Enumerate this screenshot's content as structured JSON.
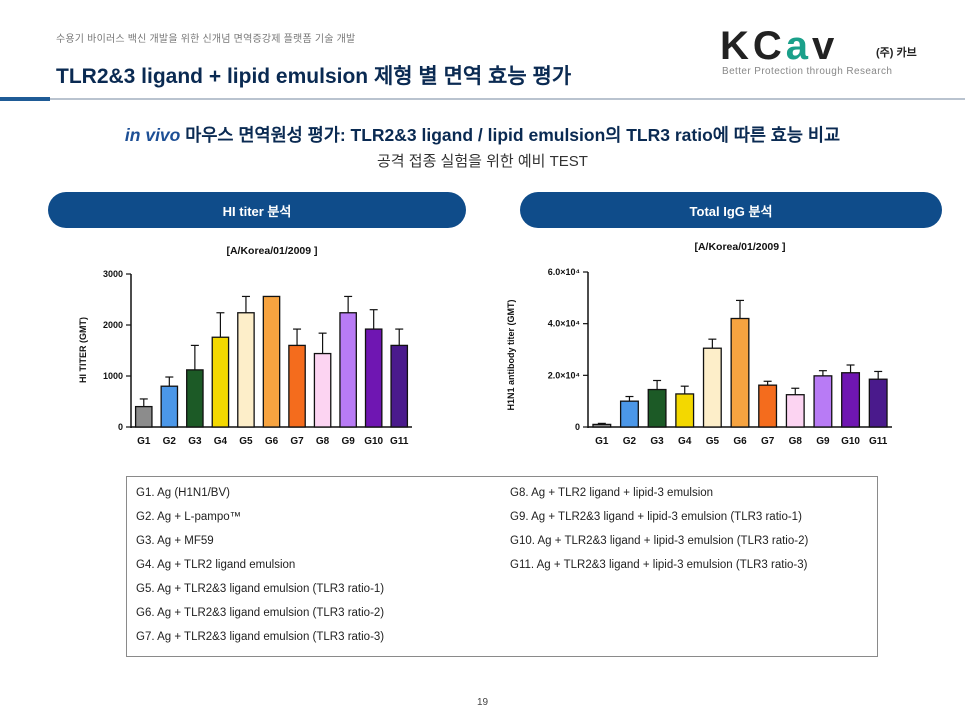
{
  "header": {
    "caption": "수용기 바이러스 백신 개발을 위한 신개념 면역증강제 플랫폼 기술 개발",
    "title": "TLR2&3 ligand + lipid emulsion 제형 별 면역 효능 평가"
  },
  "logo": {
    "word_k": "KC",
    "word_a": "a",
    "word_v": "v",
    "company": "(주) 카브",
    "tagline": "Better Protection through Research"
  },
  "headline": {
    "italic": "in vivo",
    "text": " 마우스 면역원성 평가: TLR2&3 ligand / lipid emulsion의 TLR3 ratio에 따른 효능 비교",
    "sub": "공격 접종 실험을 위한 예비 TEST"
  },
  "panels": {
    "hi_label": "HI titer 분석",
    "igg_label": "Total IgG 분석"
  },
  "chart_data": [
    {
      "type": "bar",
      "title": "[A/Korea/01/2009 ]",
      "xlabel": "",
      "ylabel": "HI TITER (GMT)",
      "categories": [
        "G1",
        "G2",
        "G3",
        "G4",
        "G5",
        "G6",
        "G7",
        "G8",
        "G9",
        "G10",
        "G11"
      ],
      "values": [
        400,
        800,
        1120,
        1760,
        2240,
        2560,
        1600,
        1440,
        2240,
        1920,
        1600
      ],
      "errors": [
        150,
        180,
        480,
        480,
        320,
        0,
        320,
        400,
        320,
        380,
        320
      ],
      "colors": [
        "#8c8c8c",
        "#4b97e8",
        "#1c5a26",
        "#f3d800",
        "#fdeec9",
        "#f6a340",
        "#f46c1d",
        "#fcd4f2",
        "#b87bf5",
        "#6f16b2",
        "#4a1a8c"
      ],
      "ylim": [
        0,
        3000
      ],
      "yticks": [
        0,
        1000,
        2000,
        3000
      ],
      "ytick_labels": [
        "0",
        "1000",
        "2000",
        "3000"
      ],
      "grid": false,
      "legend": "none"
    },
    {
      "type": "bar",
      "title": "[A/Korea/01/2009 ]",
      "xlabel": "",
      "ylabel": "H1N1 antibody titer (GMT)",
      "categories": [
        "G1",
        "G2",
        "G3",
        "G4",
        "G5",
        "G6",
        "G7",
        "G8",
        "G9",
        "G10",
        "G11"
      ],
      "values": [
        1000,
        10000,
        14500,
        12800,
        30500,
        42000,
        16200,
        12500,
        19800,
        21000,
        18500
      ],
      "errors": [
        400,
        1800,
        3500,
        3000,
        3500,
        7000,
        1500,
        2500,
        2000,
        3000,
        3000
      ],
      "colors": [
        "#8c8c8c",
        "#4b97e8",
        "#1c5a26",
        "#f3d800",
        "#fdeec9",
        "#f6a340",
        "#f46c1d",
        "#fcd4f2",
        "#b87bf5",
        "#6f16b2",
        "#4a1a8c"
      ],
      "ylim": [
        0,
        60000
      ],
      "yticks": [
        0,
        20000,
        40000,
        60000
      ],
      "ytick_labels": [
        "0",
        "2.0×10⁴",
        "4.0×10⁴",
        "6.0×10⁴"
      ],
      "grid": false,
      "legend": "none"
    }
  ],
  "legend": {
    "left": [
      "G1. Ag (H1N1/BV)",
      "G2. Ag + L-pampo™",
      "G3. Ag + MF59",
      "G4. Ag + TLR2 ligand emulsion",
      "G5. Ag + TLR2&3 ligand emulsion (TLR3 ratio-1)",
      "G6. Ag + TLR2&3 ligand emulsion (TLR3 ratio-2)",
      "G7. Ag + TLR2&3 ligand emulsion (TLR3 ratio-3)"
    ],
    "right": [
      "G8. Ag + TLR2 ligand + lipid-3 emulsion",
      "G9. Ag + TLR2&3 ligand + lipid-3 emulsion (TLR3 ratio-1)",
      "G10. Ag + TLR2&3 ligand + lipid-3 emulsion (TLR3 ratio-2)",
      "G11. Ag + TLR2&3 ligand + lipid-3 emulsion (TLR3 ratio-3)"
    ]
  },
  "footer": {
    "page_number": "19"
  }
}
